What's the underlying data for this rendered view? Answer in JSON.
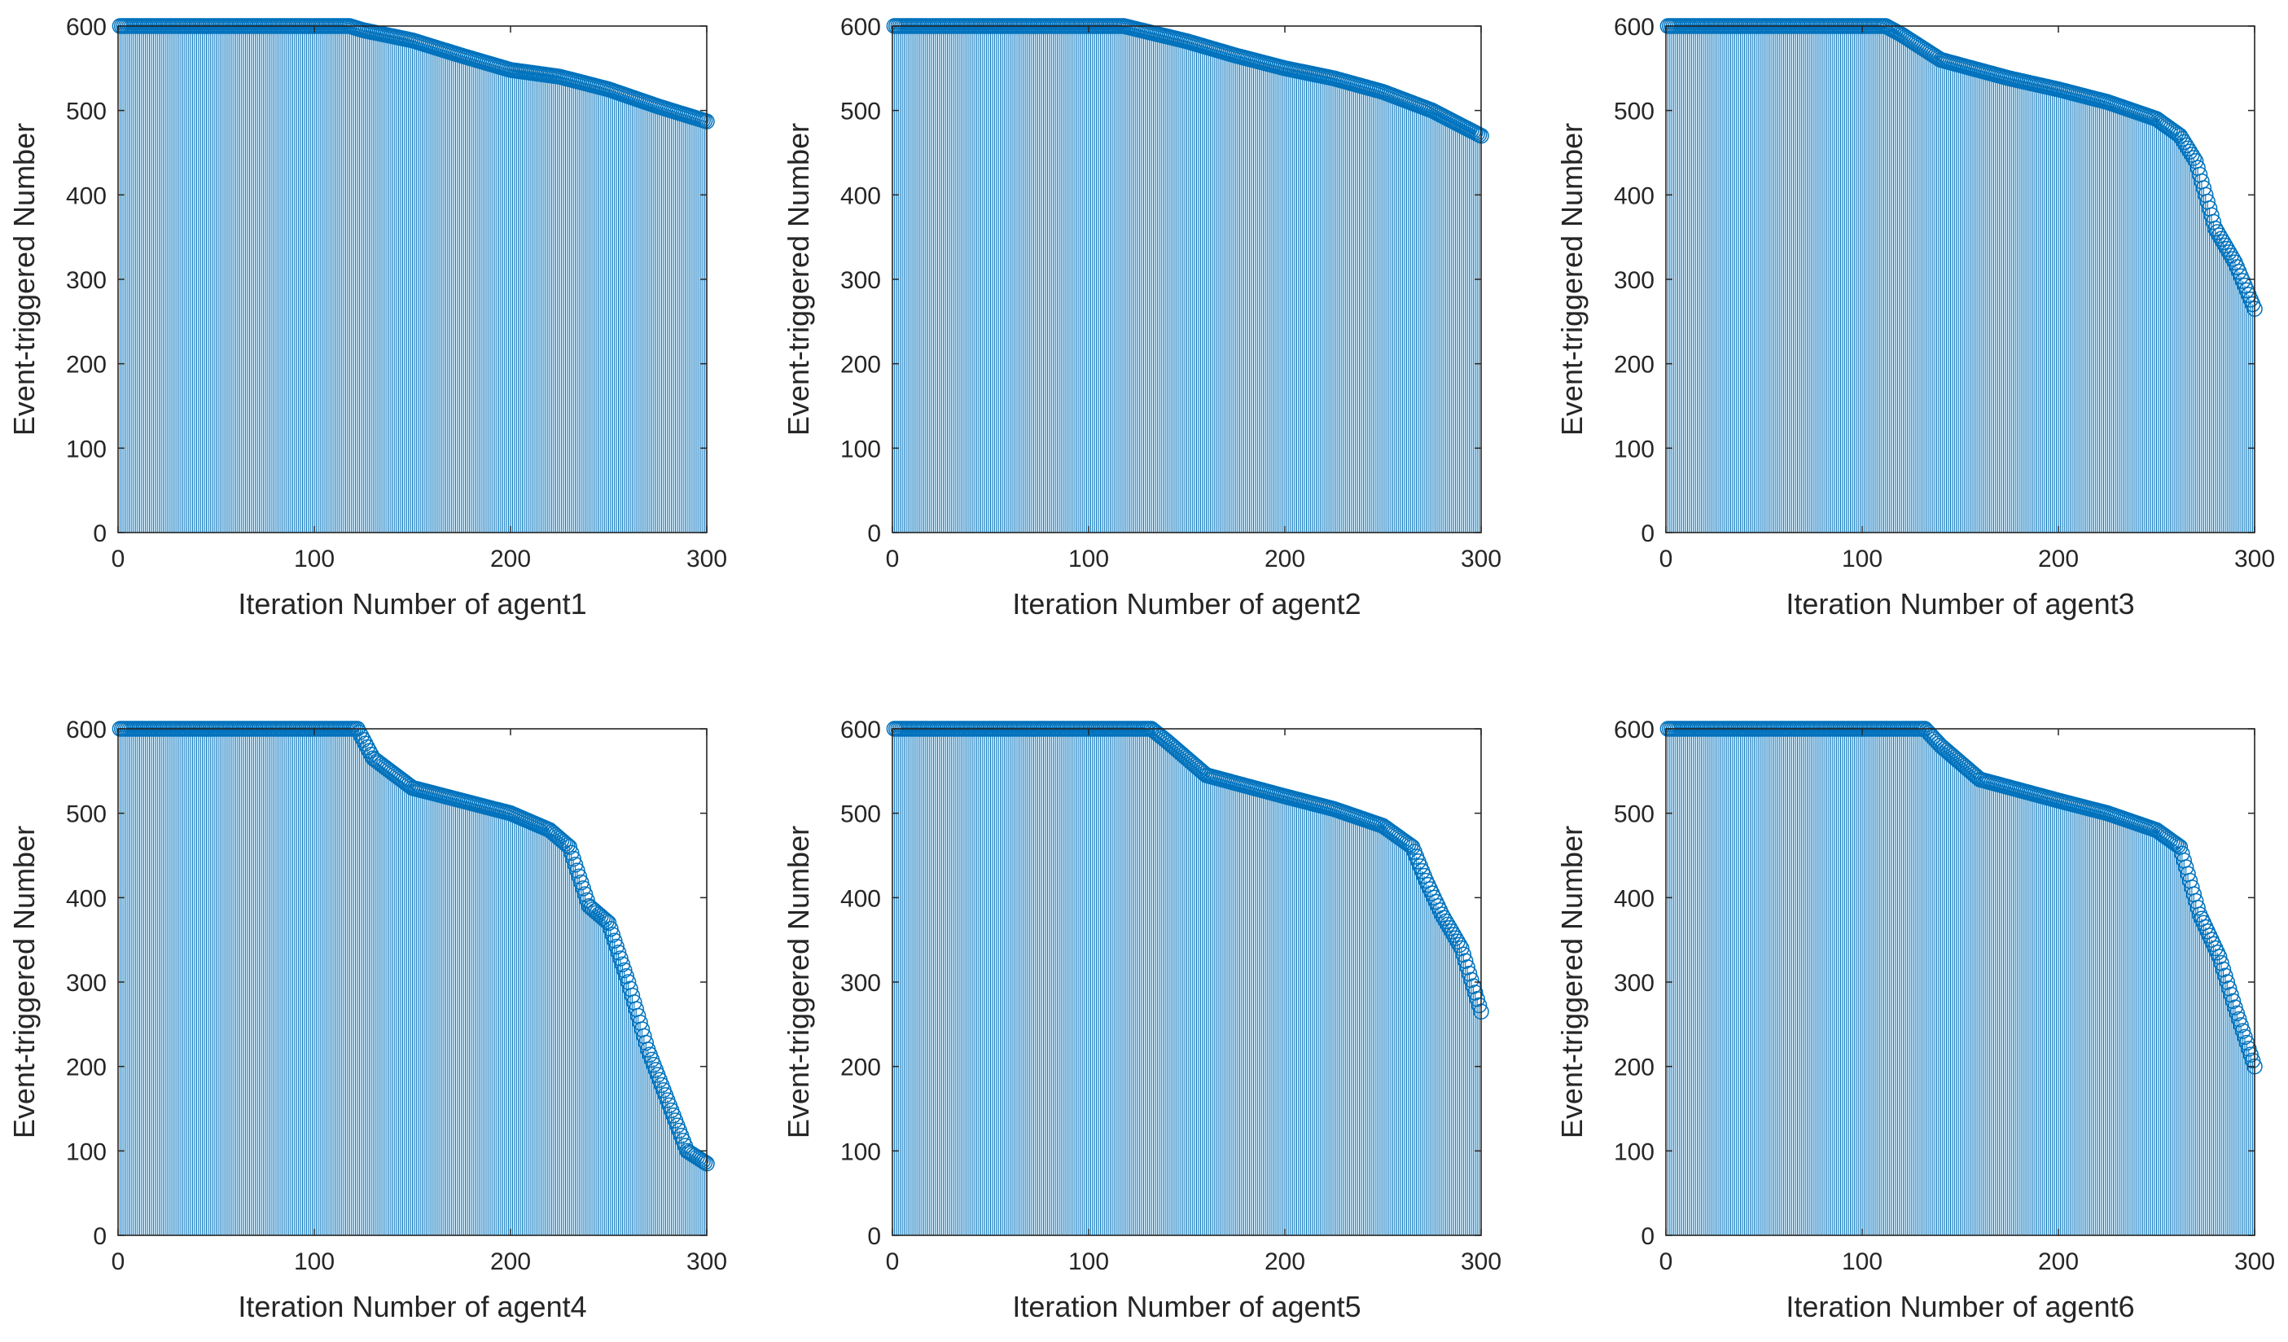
{
  "figure": {
    "layout": "2 rows x 3 columns",
    "background": "#ffffff"
  },
  "style": {
    "stem_color": "#0072BD",
    "axis_color": "#262626"
  },
  "chart_data": [
    {
      "type": "stem",
      "xlabel": "Iteration Number of agent1",
      "ylabel": "Event-triggered Number",
      "xlim": [
        0,
        300
      ],
      "ylim": [
        0,
        600
      ],
      "xticks": [
        0,
        100,
        200,
        300
      ],
      "yticks": [
        0,
        100,
        200,
        300,
        400,
        500,
        600
      ],
      "grid": false,
      "series": [
        {
          "name": "agent1",
          "start": 1,
          "end": 300,
          "step": 1,
          "profile_x": [
            1,
            118,
            125,
            150,
            175,
            200,
            225,
            250,
            275,
            300
          ],
          "profile_y": [
            600,
            600,
            595,
            583,
            565,
            548,
            540,
            525,
            505,
            487
          ]
        }
      ]
    },
    {
      "type": "stem",
      "xlabel": "Iteration Number of agent2",
      "ylabel": "Event-triggered Number",
      "xlim": [
        0,
        300
      ],
      "ylim": [
        0,
        600
      ],
      "xticks": [
        0,
        100,
        200,
        300
      ],
      "yticks": [
        0,
        100,
        200,
        300,
        400,
        500,
        600
      ],
      "grid": false,
      "series": [
        {
          "name": "agent2",
          "start": 1,
          "end": 300,
          "step": 1,
          "profile_x": [
            1,
            118,
            125,
            150,
            175,
            200,
            225,
            250,
            275,
            300
          ],
          "profile_y": [
            600,
            600,
            596,
            582,
            565,
            550,
            538,
            522,
            500,
            470
          ]
        }
      ]
    },
    {
      "type": "stem",
      "xlabel": "Iteration Number of agent3",
      "ylabel": "Event-triggered Number",
      "xlim": [
        0,
        300
      ],
      "ylim": [
        0,
        600
      ],
      "xticks": [
        0,
        100,
        200,
        300
      ],
      "yticks": [
        0,
        100,
        200,
        300,
        400,
        500,
        600
      ],
      "grid": false,
      "series": [
        {
          "name": "agent3",
          "start": 1,
          "end": 300,
          "step": 1,
          "profile_x": [
            1,
            112,
            120,
            140,
            175,
            200,
            225,
            250,
            262,
            270,
            280,
            290,
            300
          ],
          "profile_y": [
            600,
            600,
            590,
            560,
            538,
            525,
            510,
            490,
            470,
            440,
            360,
            320,
            265
          ]
        }
      ]
    },
    {
      "type": "stem",
      "xlabel": "Iteration Number of agent4",
      "ylabel": "Event-triggered Number",
      "xlim": [
        0,
        300
      ],
      "ylim": [
        0,
        600
      ],
      "xticks": [
        0,
        100,
        200,
        300
      ],
      "yticks": [
        0,
        100,
        200,
        300,
        400,
        500,
        600
      ],
      "grid": false,
      "series": [
        {
          "name": "agent4",
          "start": 1,
          "end": 300,
          "step": 1,
          "profile_x": [
            1,
            122,
            130,
            150,
            175,
            200,
            220,
            230,
            240,
            250,
            260,
            270,
            280,
            290,
            300
          ],
          "profile_y": [
            600,
            600,
            565,
            530,
            515,
            500,
            480,
            460,
            390,
            370,
            300,
            220,
            160,
            100,
            85
          ]
        }
      ]
    },
    {
      "type": "stem",
      "xlabel": "Iteration Number of agent5",
      "ylabel": "Event-triggered Number",
      "xlim": [
        0,
        300
      ],
      "ylim": [
        0,
        600
      ],
      "xticks": [
        0,
        100,
        200,
        300
      ],
      "yticks": [
        0,
        100,
        200,
        300,
        400,
        500,
        600
      ],
      "grid": false,
      "series": [
        {
          "name": "agent5",
          "start": 1,
          "end": 300,
          "step": 1,
          "profile_x": [
            1,
            132,
            140,
            160,
            200,
            225,
            250,
            265,
            272,
            280,
            290,
            300
          ],
          "profile_y": [
            600,
            600,
            585,
            545,
            520,
            505,
            485,
            460,
            420,
            380,
            340,
            265
          ]
        }
      ]
    },
    {
      "type": "stem",
      "xlabel": "Iteration Number of agent6",
      "ylabel": "Event-triggered Number",
      "xlim": [
        0,
        300
      ],
      "ylim": [
        0,
        600
      ],
      "xticks": [
        0,
        100,
        200,
        300
      ],
      "yticks": [
        0,
        100,
        200,
        300,
        400,
        500,
        600
      ],
      "grid": false,
      "series": [
        {
          "name": "agent6",
          "start": 1,
          "end": 300,
          "step": 1,
          "profile_x": [
            1,
            132,
            140,
            160,
            200,
            225,
            250,
            262,
            272,
            282,
            290,
            300
          ],
          "profile_y": [
            600,
            600,
            580,
            540,
            515,
            500,
            480,
            460,
            380,
            330,
            270,
            200
          ]
        }
      ]
    }
  ]
}
